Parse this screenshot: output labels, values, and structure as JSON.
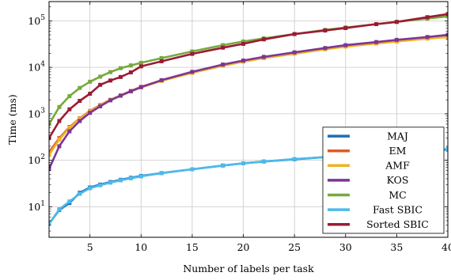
{
  "chart_data": {
    "type": "line",
    "xlabel": "Number of labels per task",
    "ylabel": "Time (ms)",
    "x_scale": "linear",
    "y_scale": "log",
    "xlim": [
      1,
      40
    ],
    "ylim": [
      2.2,
      260000
    ],
    "grid": true,
    "legend_position": "bottom-right",
    "x_ticks": [
      {
        "value": 5,
        "label": "5"
      },
      {
        "value": 10,
        "label": "10"
      },
      {
        "value": 15,
        "label": "15"
      },
      {
        "value": 20,
        "label": "20"
      },
      {
        "value": 25,
        "label": "25"
      },
      {
        "value": 30,
        "label": "30"
      },
      {
        "value": 35,
        "label": "35"
      },
      {
        "value": 40,
        "label": "40"
      }
    ],
    "y_ticks": [
      {
        "value": 10,
        "base": "10",
        "exp": "1"
      },
      {
        "value": 100,
        "base": "10",
        "exp": "2"
      },
      {
        "value": 1000,
        "base": "10",
        "exp": "3"
      },
      {
        "value": 10000,
        "base": "10",
        "exp": "4"
      },
      {
        "value": 100000,
        "base": "10",
        "exp": "5"
      }
    ],
    "series": [
      {
        "name": "MAJ",
        "color": "#1f6fb4",
        "points": [
          [
            1,
            4.3
          ],
          [
            2,
            8.5
          ],
          [
            3,
            12
          ],
          [
            4,
            20
          ],
          [
            5,
            26
          ],
          [
            6,
            30
          ],
          [
            7,
            34
          ],
          [
            8,
            38
          ],
          [
            9,
            42
          ],
          [
            10,
            46
          ],
          [
            12,
            53
          ],
          [
            15,
            64
          ],
          [
            18,
            77
          ],
          [
            20,
            86
          ],
          [
            22,
            94
          ],
          [
            25,
            105
          ],
          [
            28,
            117
          ],
          [
            30,
            124
          ],
          [
            33,
            137
          ],
          [
            35,
            146
          ],
          [
            38,
            160
          ],
          [
            40,
            170
          ]
        ]
      },
      {
        "name": "EM",
        "color": "#e05a26",
        "points": [
          [
            1,
            150
          ],
          [
            2,
            300
          ],
          [
            3,
            520
          ],
          [
            4,
            800
          ],
          [
            5,
            1150
          ],
          [
            6,
            1550
          ],
          [
            7,
            2000
          ],
          [
            8,
            2500
          ],
          [
            9,
            3100
          ],
          [
            10,
            3800
          ],
          [
            12,
            5200
          ],
          [
            15,
            7800
          ],
          [
            18,
            11000
          ],
          [
            20,
            13500
          ],
          [
            22,
            16000
          ],
          [
            25,
            20000
          ],
          [
            28,
            25000
          ],
          [
            30,
            28500
          ],
          [
            33,
            33000
          ],
          [
            35,
            36500
          ],
          [
            38,
            42000
          ],
          [
            40,
            46000
          ]
        ]
      },
      {
        "name": "AMF",
        "color": "#eeb324",
        "points": [
          [
            1,
            130
          ],
          [
            2,
            280
          ],
          [
            3,
            500
          ],
          [
            4,
            780
          ],
          [
            5,
            1120
          ],
          [
            6,
            1520
          ],
          [
            7,
            1980
          ],
          [
            8,
            2480
          ],
          [
            9,
            3050
          ],
          [
            10,
            3700
          ],
          [
            12,
            5100
          ],
          [
            15,
            7600
          ],
          [
            18,
            10800
          ],
          [
            20,
            13200
          ],
          [
            22,
            15800
          ],
          [
            25,
            19600
          ],
          [
            28,
            24500
          ],
          [
            30,
            28000
          ],
          [
            33,
            32500
          ],
          [
            35,
            36000
          ],
          [
            38,
            41500
          ],
          [
            40,
            45000
          ]
        ]
      },
      {
        "name": "KOS",
        "color": "#7d3595",
        "points": [
          [
            1,
            65
          ],
          [
            2,
            200
          ],
          [
            3,
            420
          ],
          [
            4,
            700
          ],
          [
            5,
            1050
          ],
          [
            6,
            1450
          ],
          [
            7,
            1950
          ],
          [
            8,
            2450
          ],
          [
            9,
            3050
          ],
          [
            10,
            3750
          ],
          [
            12,
            5300
          ],
          [
            15,
            8000
          ],
          [
            18,
            11500
          ],
          [
            20,
            14000
          ],
          [
            22,
            16800
          ],
          [
            25,
            21000
          ],
          [
            28,
            26000
          ],
          [
            30,
            30000
          ],
          [
            33,
            35000
          ],
          [
            35,
            39000
          ],
          [
            38,
            45000
          ],
          [
            40,
            50000
          ]
        ]
      },
      {
        "name": "MC",
        "color": "#76aa3d",
        "points": [
          [
            1,
            600
          ],
          [
            2,
            1400
          ],
          [
            3,
            2400
          ],
          [
            4,
            3600
          ],
          [
            5,
            4900
          ],
          [
            6,
            6300
          ],
          [
            7,
            7900
          ],
          [
            8,
            9600
          ],
          [
            9,
            11000
          ],
          [
            10,
            12500
          ],
          [
            12,
            15800
          ],
          [
            15,
            22000
          ],
          [
            18,
            30000
          ],
          [
            20,
            36000
          ],
          [
            22,
            42000
          ],
          [
            25,
            52000
          ],
          [
            28,
            64000
          ],
          [
            30,
            72000
          ],
          [
            33,
            85000
          ],
          [
            35,
            95000
          ],
          [
            38,
            112000
          ],
          [
            40,
            125000
          ]
        ]
      },
      {
        "name": "Fast SBIC",
        "color": "#4cbaea",
        "points": [
          [
            1,
            4.3
          ],
          [
            2,
            8.8
          ],
          [
            3,
            13
          ],
          [
            4,
            19
          ],
          [
            5,
            25
          ],
          [
            6,
            29
          ],
          [
            7,
            33
          ],
          [
            8,
            37
          ],
          [
            9,
            41
          ],
          [
            10,
            45
          ],
          [
            12,
            53
          ],
          [
            15,
            64
          ],
          [
            18,
            77
          ],
          [
            20,
            86
          ],
          [
            22,
            94
          ],
          [
            25,
            106
          ],
          [
            28,
            117
          ],
          [
            30,
            124
          ],
          [
            33,
            137
          ],
          [
            35,
            147
          ],
          [
            38,
            162
          ],
          [
            40,
            175
          ]
        ]
      },
      {
        "name": "Sorted SBIC",
        "color": "#9b1b34",
        "points": [
          [
            1,
            300
          ],
          [
            2,
            700
          ],
          [
            3,
            1250
          ],
          [
            4,
            1900
          ],
          [
            5,
            2700
          ],
          [
            6,
            4200
          ],
          [
            7,
            5200
          ],
          [
            8,
            6200
          ],
          [
            9,
            7800
          ],
          [
            10,
            10500
          ],
          [
            12,
            13500
          ],
          [
            15,
            19500
          ],
          [
            18,
            26500
          ],
          [
            20,
            32000
          ],
          [
            22,
            40000
          ],
          [
            25,
            52000
          ],
          [
            28,
            62000
          ],
          [
            30,
            70000
          ],
          [
            33,
            85000
          ],
          [
            35,
            95000
          ],
          [
            38,
            120000
          ],
          [
            40,
            140000
          ]
        ]
      }
    ]
  }
}
